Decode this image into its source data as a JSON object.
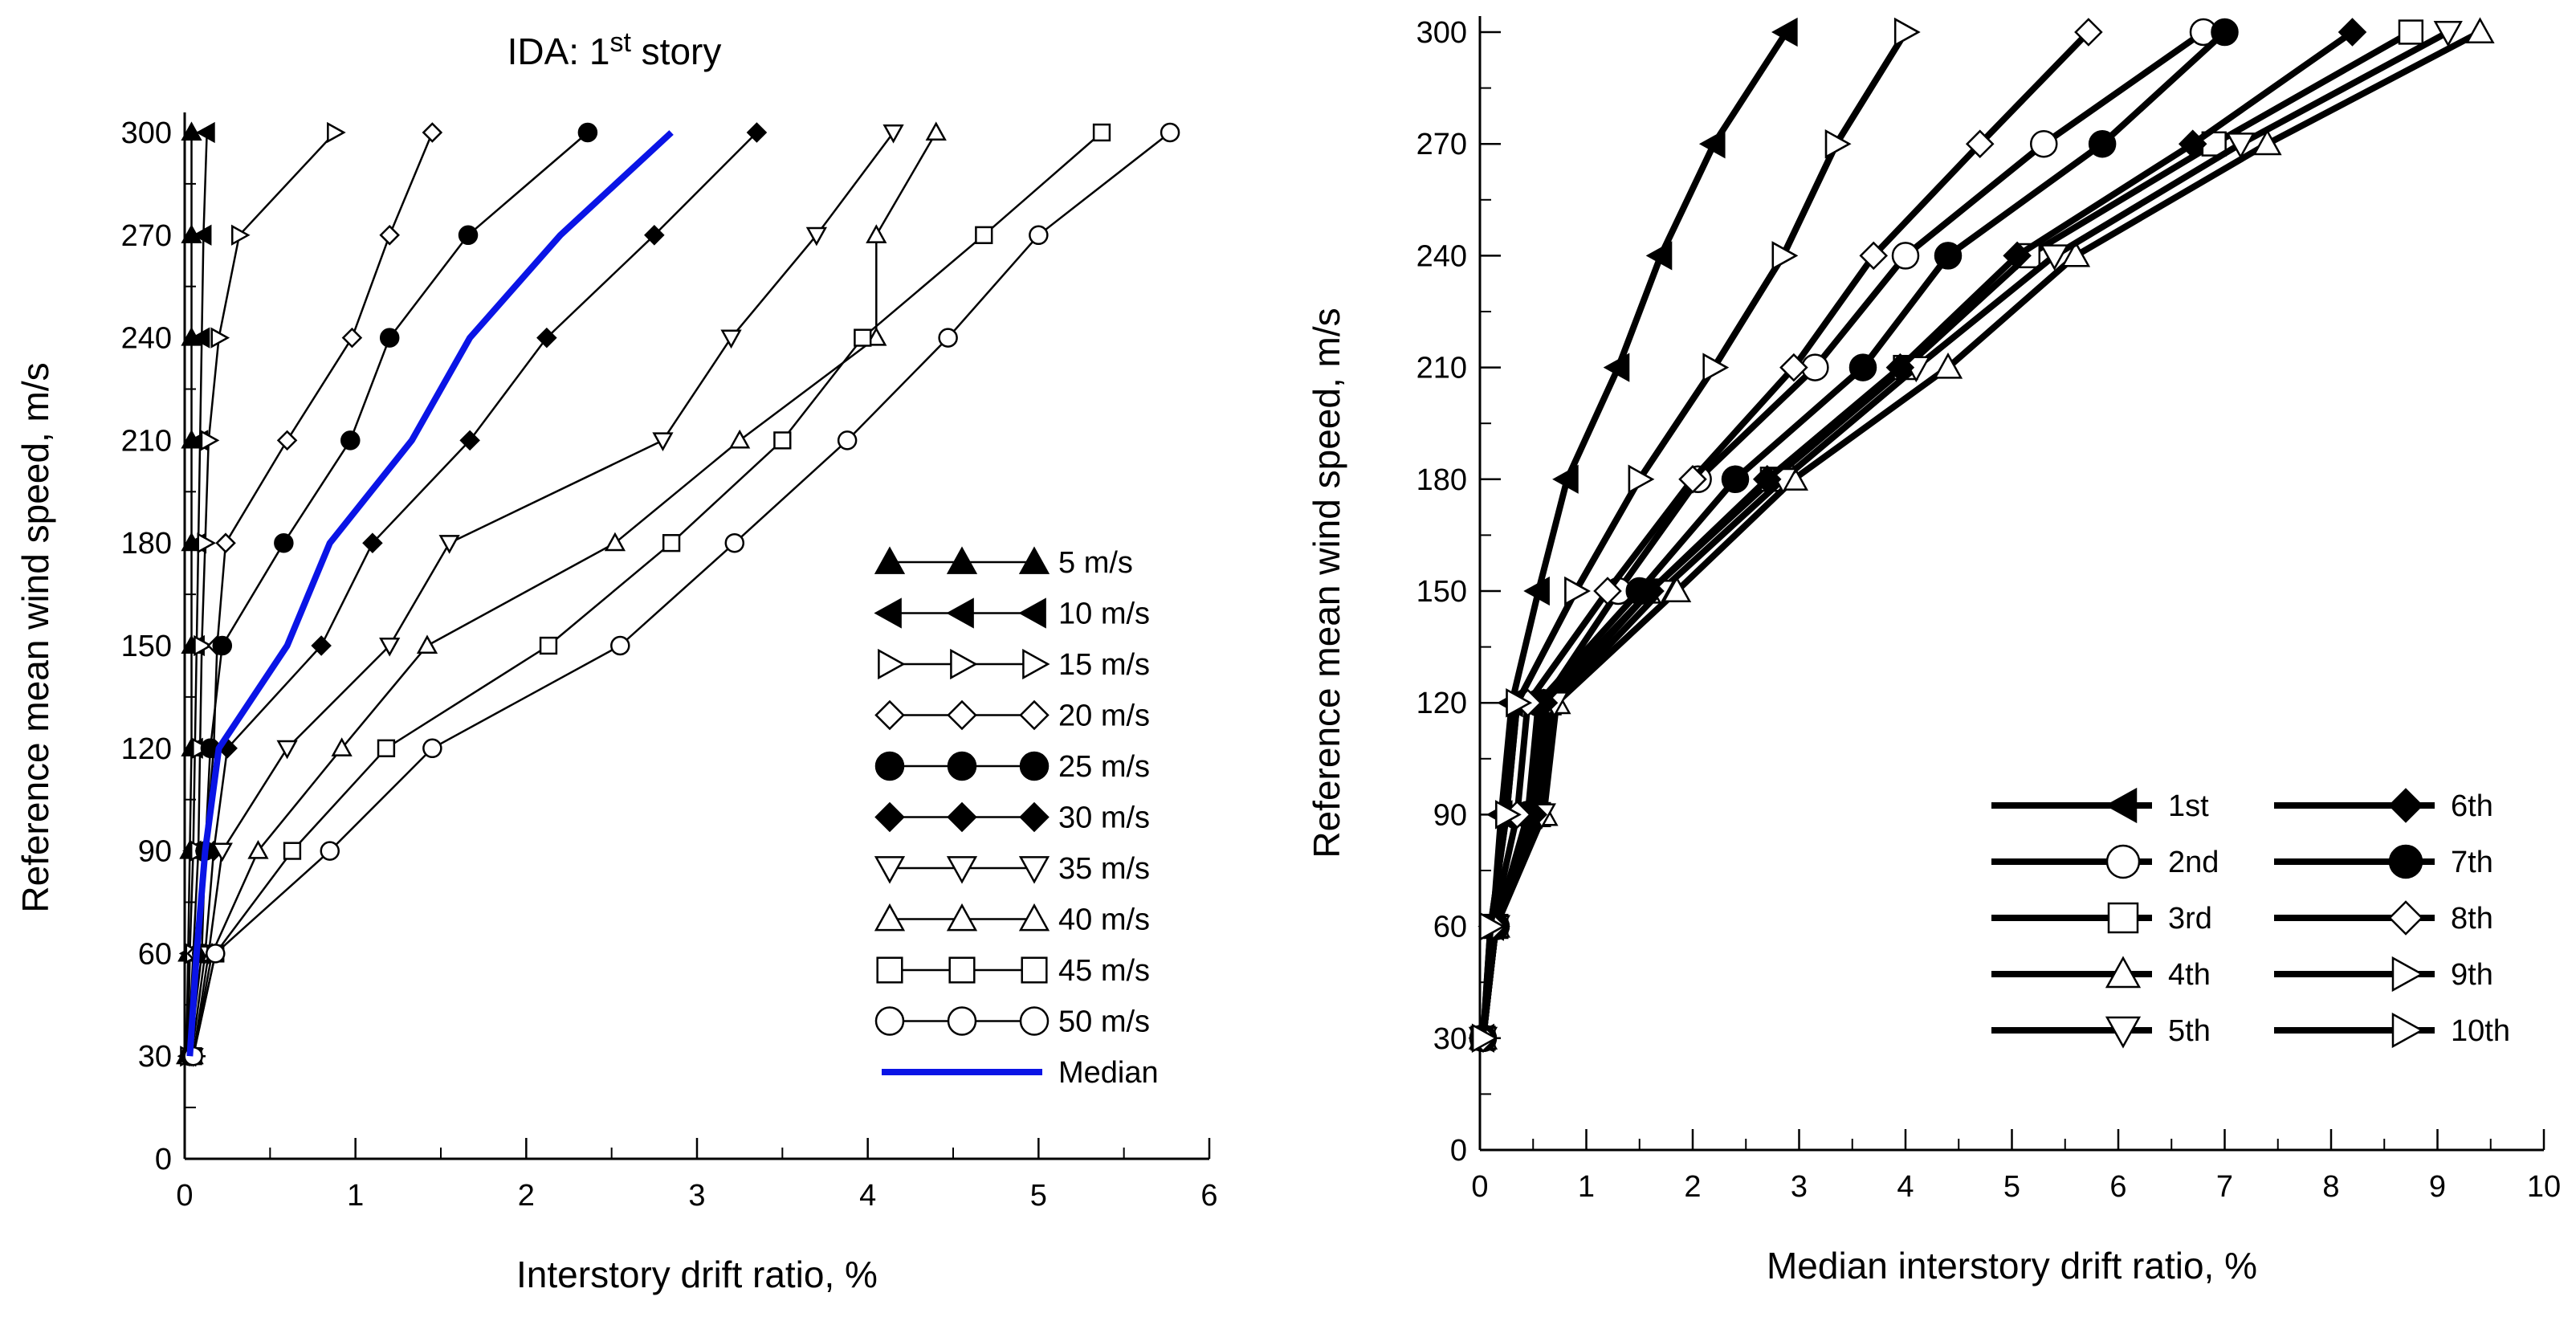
{
  "chart_data": [
    {
      "type": "line",
      "title_main": "IDA: 1",
      "title_sup": "st",
      "title_tail": " story",
      "xlabel": "Interstory drift ratio, %",
      "ylabel": "Reference mean wind speed, m/s",
      "xlim": [
        0,
        6
      ],
      "ylim": [
        0,
        300
      ],
      "xticks": [
        0,
        1,
        2,
        3,
        4,
        5,
        6
      ],
      "yticks": [
        0,
        30,
        60,
        90,
        120,
        150,
        180,
        210,
        240,
        270,
        300
      ],
      "grid": false,
      "legend_position": "bottom-right",
      "y": [
        30,
        60,
        90,
        120,
        150,
        180,
        210,
        240,
        270,
        300
      ],
      "series": [
        {
          "name": "5 m/s",
          "marker": "triangle-up",
          "filled": true,
          "x": [
            0.01,
            0.02,
            0.03,
            0.04,
            0.04,
            0.04,
            0.04,
            0.04,
            0.04,
            0.04
          ]
        },
        {
          "name": "10 m/s",
          "marker": "triangle-left",
          "filled": true,
          "x": [
            0.02,
            0.03,
            0.05,
            0.06,
            0.07,
            0.08,
            0.09,
            0.1,
            0.11,
            0.13
          ]
        },
        {
          "name": "15 m/s",
          "marker": "triangle-right",
          "filled": false,
          "x": [
            0.02,
            0.05,
            0.08,
            0.09,
            0.1,
            0.12,
            0.14,
            0.2,
            0.32,
            0.88
          ]
        },
        {
          "name": "20 m/s",
          "marker": "diamond",
          "filled": false,
          "x": [
            0.03,
            0.07,
            0.12,
            0.17,
            0.19,
            0.24,
            0.6,
            0.98,
            1.2,
            1.45
          ]
        },
        {
          "name": "25 m/s",
          "marker": "circle",
          "filled": true,
          "x": [
            0.03,
            0.1,
            0.12,
            0.15,
            0.22,
            0.58,
            0.97,
            1.2,
            1.66,
            2.36
          ]
        },
        {
          "name": "30 m/s",
          "marker": "diamond",
          "filled": true,
          "x": [
            0.04,
            0.12,
            0.17,
            0.25,
            0.8,
            1.1,
            1.67,
            2.12,
            2.75,
            3.35
          ]
        },
        {
          "name": "35 m/s",
          "marker": "triangle-down",
          "filled": false,
          "x": [
            0.05,
            0.14,
            0.22,
            0.6,
            1.2,
            1.55,
            2.8,
            3.2,
            3.7,
            4.15
          ]
        },
        {
          "name": "40 m/s",
          "marker": "triangle-up",
          "filled": false,
          "x": [
            0.05,
            0.16,
            0.43,
            0.92,
            1.42,
            2.52,
            3.25,
            4.05,
            4.05,
            4.4
          ]
        },
        {
          "name": "45 m/s",
          "marker": "square",
          "filled": false,
          "x": [
            0.05,
            0.18,
            0.63,
            1.18,
            2.13,
            2.85,
            3.5,
            3.97,
            4.68,
            5.37
          ]
        },
        {
          "name": "50 m/s",
          "marker": "circle",
          "filled": false,
          "x": [
            0.05,
            0.18,
            0.85,
            1.45,
            2.55,
            3.22,
            3.88,
            4.47,
            5.0,
            5.77
          ]
        },
        {
          "name": "Median",
          "marker": "none",
          "filled": false,
          "color": "#0a14e6",
          "x": [
            0.03,
            0.07,
            0.12,
            0.2,
            0.6,
            0.85,
            1.33,
            1.67,
            2.2,
            2.85
          ]
        }
      ]
    },
    {
      "type": "line",
      "title": "",
      "xlabel": "Median interstory drift ratio, %",
      "ylabel": "Reference mean wind speed, m/s",
      "xlim": [
        0,
        10
      ],
      "ylim": [
        0,
        300
      ],
      "xticks": [
        0,
        1,
        2,
        3,
        4,
        5,
        6,
        7,
        8,
        9,
        10
      ],
      "yticks": [
        0,
        30,
        60,
        90,
        120,
        150,
        180,
        210,
        240,
        270,
        300
      ],
      "grid": false,
      "legend_position": "bottom-right",
      "y": [
        30,
        60,
        90,
        120,
        150,
        180,
        210,
        240,
        270,
        300
      ],
      "series": [
        {
          "name": "1st",
          "marker": "triangle-left",
          "filled": true,
          "x": [
            0.03,
            0.12,
            0.2,
            0.3,
            0.55,
            0.82,
            1.3,
            1.7,
            2.2,
            2.88
          ]
        },
        {
          "name": "2nd",
          "marker": "circle",
          "filled": false,
          "x": [
            0.03,
            0.15,
            0.5,
            0.6,
            1.3,
            2.05,
            3.15,
            4.0,
            5.3,
            6.8
          ]
        },
        {
          "name": "3rd",
          "marker": "square",
          "filled": false,
          "x": [
            0.03,
            0.15,
            0.55,
            0.65,
            1.6,
            2.75,
            4.0,
            5.15,
            6.9,
            8.75
          ]
        },
        {
          "name": "4th",
          "marker": "triangle-up",
          "filled": false,
          "x": [
            0.03,
            0.15,
            0.6,
            0.72,
            1.85,
            2.95,
            4.4,
            5.6,
            7.4,
            9.4
          ]
        },
        {
          "name": "5th",
          "marker": "triangle-down",
          "filled": false,
          "x": [
            0.03,
            0.15,
            0.58,
            0.7,
            1.7,
            2.85,
            4.1,
            5.4,
            7.15,
            9.1
          ]
        },
        {
          "name": "6th",
          "marker": "diamond",
          "filled": true,
          "x": [
            0.03,
            0.15,
            0.5,
            0.6,
            1.6,
            2.7,
            3.95,
            5.05,
            6.7,
            8.2
          ]
        },
        {
          "name": "7th",
          "marker": "circle",
          "filled": true,
          "x": [
            0.03,
            0.15,
            0.45,
            0.55,
            1.5,
            2.4,
            3.6,
            4.4,
            5.85,
            7.0
          ]
        },
        {
          "name": "8th",
          "marker": "diamond",
          "filled": false,
          "x": [
            0.03,
            0.12,
            0.35,
            0.45,
            1.2,
            2.0,
            2.95,
            3.7,
            4.7,
            5.72
          ]
        },
        {
          "name": "9th",
          "marker": "triangle-right",
          "filled": false,
          "x": [
            0.03,
            0.1,
            0.25,
            0.35,
            0.9,
            1.5,
            2.2,
            2.85,
            3.35,
            4.0
          ]
        },
        {
          "name": "10th",
          "marker": "triangle-right",
          "filled": false,
          "x": [
            0.03,
            0.1,
            0.25,
            0.35,
            0.9,
            1.5,
            2.2,
            2.85,
            3.35,
            4.0
          ]
        }
      ]
    }
  ]
}
